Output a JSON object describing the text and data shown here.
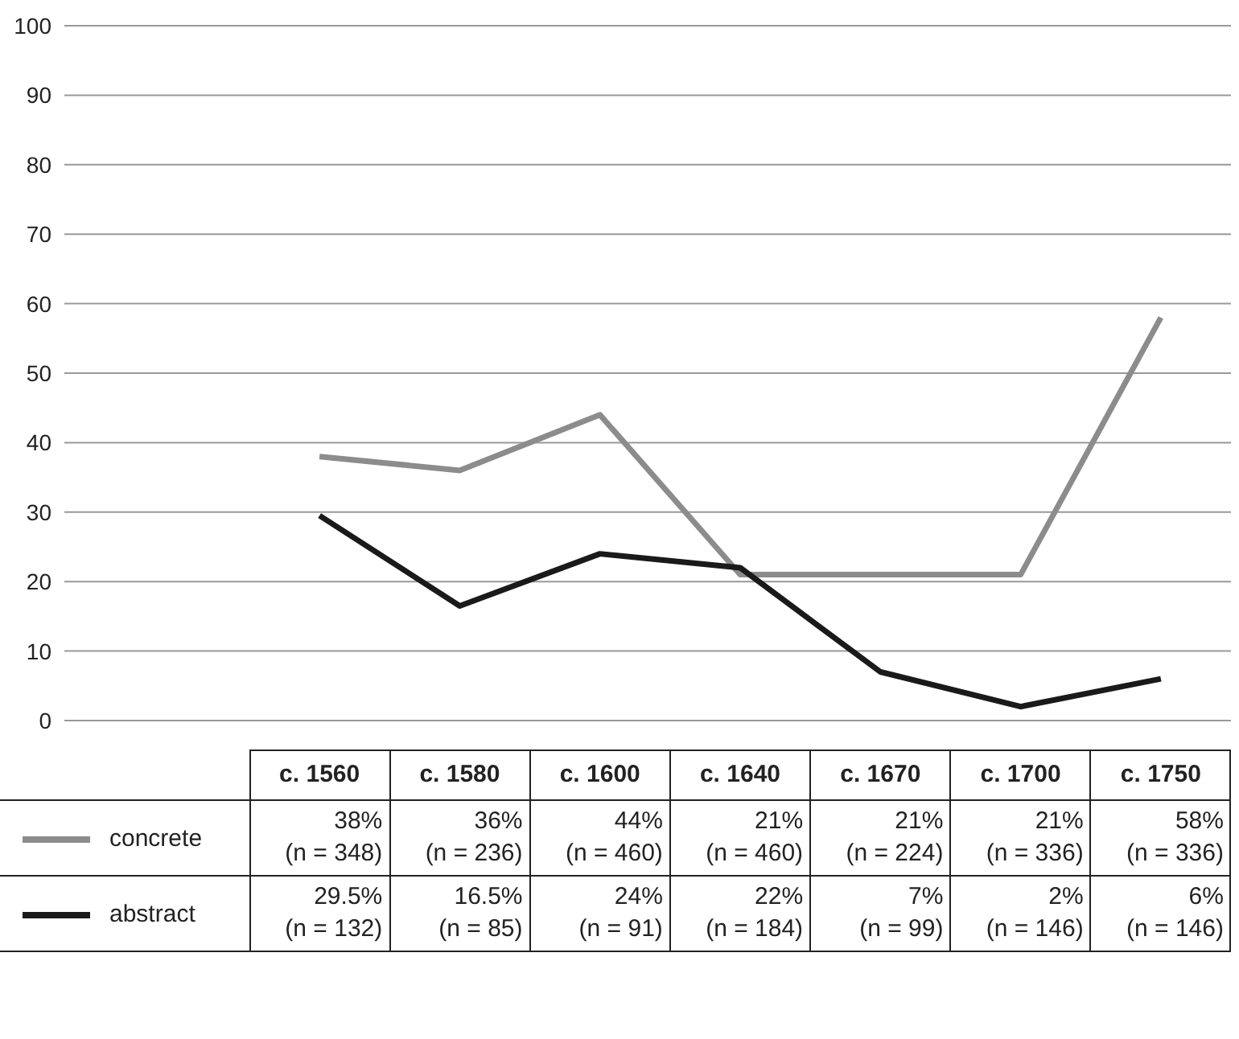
{
  "chart_data": {
    "type": "line",
    "categories": [
      "c. 1560",
      "c. 1580",
      "c. 1600",
      "c. 1640",
      "c. 1670",
      "c. 1700",
      "c. 1750"
    ],
    "series": [
      {
        "name": "concrete",
        "color": "#8c8c8c",
        "values": [
          38,
          36,
          44,
          21,
          21,
          21,
          58
        ],
        "value_labels": [
          "38% (n = 348)",
          "36% (n = 236)",
          "44% (n = 460)",
          "21% (n = 460)",
          "21% (n = 224)",
          "21% (n = 336)",
          "58% (n = 336)"
        ]
      },
      {
        "name": "abstract",
        "color": "#1a1a1a",
        "values": [
          29.5,
          16.5,
          24,
          22,
          7,
          2,
          6
        ],
        "value_labels": [
          "29.5% (n = 132)",
          "16.5% (n = 85)",
          "24% (n = 91)",
          "22% (n = 184)",
          "7% (n = 99)",
          "2% (n = 146)",
          "6% (n = 146)"
        ]
      }
    ],
    "ylim": [
      0,
      100
    ],
    "yticks": [
      0,
      10,
      20,
      30,
      40,
      50,
      60,
      70,
      80,
      90,
      100
    ],
    "grid": "y",
    "legend": "bottom",
    "marker": "none",
    "line_style": "solid"
  }
}
